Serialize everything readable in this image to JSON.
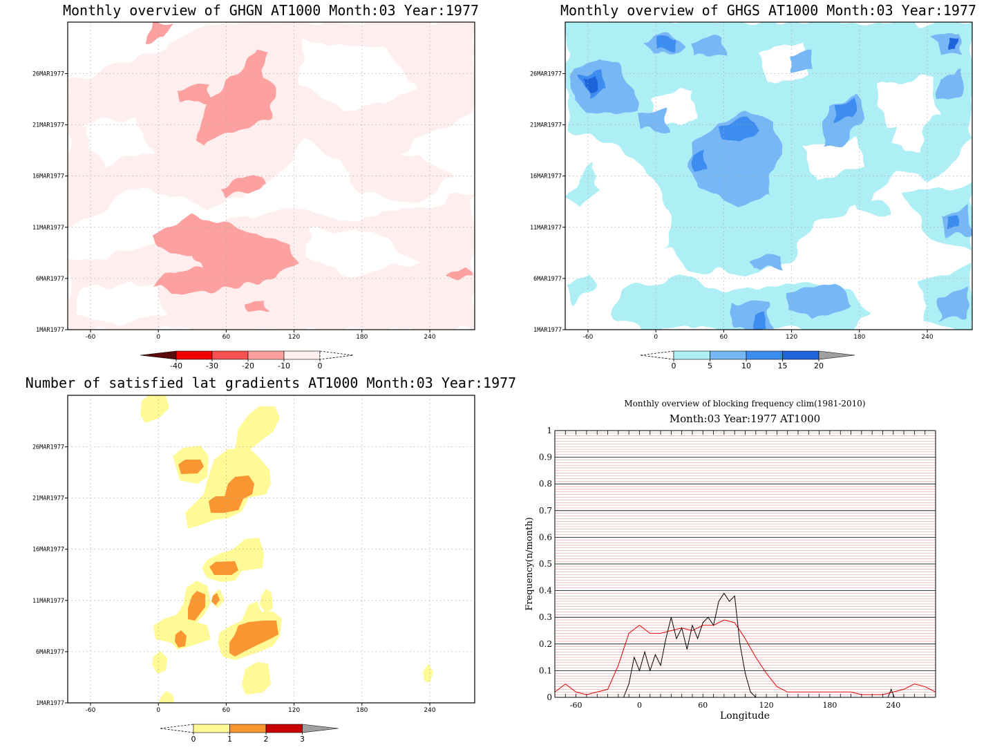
{
  "chart_data": [
    {
      "type": "heatmap",
      "title": "Monthly overview of GHGN AT1000 Month:03 Year:1977",
      "x_ticks": [
        "-60",
        "0",
        "60",
        "120",
        "180",
        "240"
      ],
      "y_ticks": [
        "1MAR1977",
        "6MAR1977",
        "11MAR1977",
        "16MAR1977",
        "21MAR1977",
        "26MAR1977"
      ],
      "colorbar": {
        "labels": [
          "-40",
          "-30",
          "-20",
          "-10",
          "0"
        ],
        "colors": [
          "#5a0a0a",
          "#f00000",
          "#f75050",
          "#fca0a0",
          "#ffeeee"
        ]
      }
    },
    {
      "type": "heatmap",
      "title": "Monthly overview of GHGS AT1000 Month:03 Year:1977",
      "x_ticks": [
        "-60",
        "0",
        "60",
        "120",
        "180",
        "240"
      ],
      "y_ticks": [
        "1MAR1977",
        "6MAR1977",
        "11MAR1977",
        "16MAR1977",
        "21MAR1977",
        "26MAR1977"
      ],
      "colorbar": {
        "labels": [
          "0",
          "5",
          "10",
          "15",
          "20"
        ],
        "colors": [
          "#aeeef5",
          "#78b7f5",
          "#3c8cf0",
          "#1e64dc",
          "#a0a0a0"
        ]
      }
    },
    {
      "type": "heatmap",
      "title": "Number of satisfied lat gradients AT1000 Month:03 Year:1977",
      "x_ticks": [
        "-60",
        "0",
        "60",
        "120",
        "180",
        "240"
      ],
      "y_ticks": [
        "1MAR1977",
        "6MAR1977",
        "11MAR1977",
        "16MAR1977",
        "21MAR1977",
        "26MAR1977"
      ],
      "colorbar": {
        "labels": [
          "0",
          "1",
          "2",
          "3"
        ],
        "colors": [
          "#fffa96",
          "#fa9632",
          "#c80000",
          "#a0a0a0"
        ]
      }
    },
    {
      "type": "line",
      "title": "Monthly overview of blocking frequency clim(1981-2010)",
      "subtitle": "Month:03 Year:1977  AT1000",
      "xlabel": "Longitude",
      "ylabel": "Frequency(n/month)",
      "xlim": [
        -80,
        280
      ],
      "ylim": [
        0,
        1
      ],
      "x_ticks": [
        "-60",
        "0",
        "60",
        "120",
        "180",
        "240"
      ],
      "y_ticks": [
        "0",
        "0.1",
        "0.2",
        "0.3",
        "0.4",
        "0.5",
        "0.6",
        "0.7",
        "0.8",
        "0.9",
        "1"
      ],
      "series": [
        {
          "color": "#e00000",
          "x": [
            -80,
            -70,
            -60,
            -50,
            -40,
            -30,
            -20,
            -10,
            0,
            10,
            20,
            30,
            40,
            50,
            60,
            70,
            80,
            90,
            100,
            110,
            120,
            130,
            140,
            150,
            160,
            170,
            180,
            190,
            200,
            210,
            220,
            230,
            240,
            250,
            260,
            270,
            280
          ],
          "y": [
            0.02,
            0.05,
            0.02,
            0.01,
            0.02,
            0.03,
            0.12,
            0.24,
            0.27,
            0.24,
            0.24,
            0.25,
            0.26,
            0.25,
            0.27,
            0.27,
            0.29,
            0.28,
            0.22,
            0.15,
            0.09,
            0.04,
            0.02,
            0.02,
            0.02,
            0.02,
            0.02,
            0.02,
            0.02,
            0.01,
            0.01,
            0.01,
            0.02,
            0.03,
            0.05,
            0.04,
            0.02
          ]
        },
        {
          "color": "#000000",
          "x": [
            -15,
            -10,
            -5,
            0,
            5,
            10,
            15,
            20,
            25,
            30,
            35,
            40,
            45,
            50,
            55,
            60,
            65,
            70,
            75,
            80,
            85,
            90,
            95,
            100,
            105,
            110,
            235,
            238,
            241
          ],
          "y": [
            0.0,
            0.05,
            0.15,
            0.1,
            0.17,
            0.1,
            0.16,
            0.12,
            0.22,
            0.3,
            0.22,
            0.26,
            0.18,
            0.27,
            0.22,
            0.28,
            0.3,
            0.27,
            0.36,
            0.39,
            0.36,
            0.38,
            0.2,
            0.09,
            0.02,
            0.0,
            0.0,
            0.03,
            0.0
          ]
        }
      ]
    }
  ]
}
